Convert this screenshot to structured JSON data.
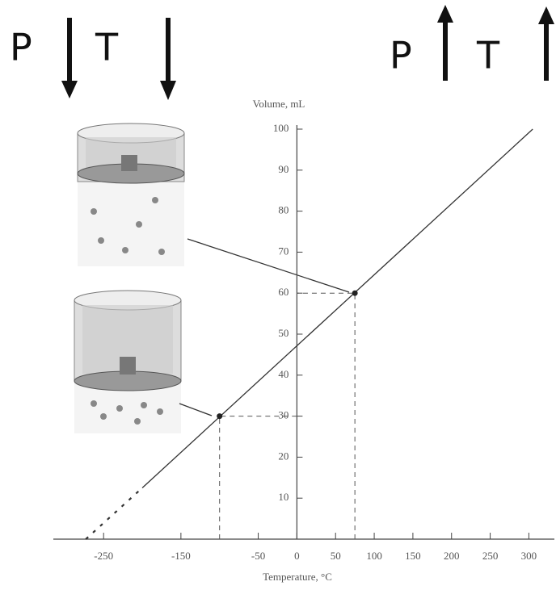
{
  "chart_data": {
    "type": "line",
    "y_label": "Volume, mL",
    "x_label": "Temperature, °C",
    "annotations": [
      "P",
      "T",
      "P",
      "T"
    ],
    "xlim": [
      -315,
      333
    ],
    "ylim": [
      0,
      100
    ],
    "xticks": [
      -250,
      -150,
      -50,
      0,
      50,
      100,
      150,
      200,
      250,
      300
    ],
    "yticks": [
      10,
      20,
      30,
      40,
      50,
      60,
      70,
      80,
      90,
      100
    ],
    "series": [
      {
        "x": [
          -200,
          305
        ],
        "values": [
          12.5,
          100
        ],
        "color": "#333333",
        "dashed": false
      },
      {
        "x": [
          -273,
          -200
        ],
        "values": [
          0,
          12.5
        ],
        "color": "#333333",
        "dashed": true
      }
    ],
    "points": {
      "x": [
        -100,
        75
      ],
      "values": [
        30,
        60
      ]
    }
  }
}
